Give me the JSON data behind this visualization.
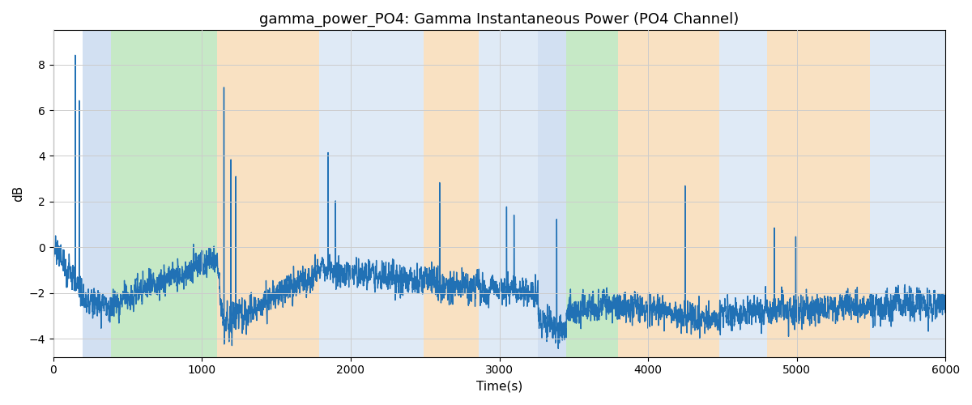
{
  "title": "gamma_power_PO4: Gamma Instantaneous Power (PO4 Channel)",
  "xlabel": "Time(s)",
  "ylabel": "dB",
  "xlim": [
    0,
    6000
  ],
  "ylim": [
    -4.8,
    9.5
  ],
  "yticks": [
    -4,
    -2,
    0,
    2,
    4,
    6,
    8
  ],
  "xticks": [
    0,
    1000,
    2000,
    3000,
    4000,
    5000,
    6000
  ],
  "line_color": "#2171b5",
  "line_width": 1.0,
  "background_color": "#ffffff",
  "grid_color": "#cccccc",
  "title_fontsize": 13,
  "bands": [
    {
      "xmin": 200,
      "xmax": 390,
      "color": "#aec8e8",
      "alpha": 0.55
    },
    {
      "xmin": 390,
      "xmax": 1100,
      "color": "#98d898",
      "alpha": 0.55
    },
    {
      "xmin": 1100,
      "xmax": 1790,
      "color": "#f5c990",
      "alpha": 0.55
    },
    {
      "xmin": 1790,
      "xmax": 2490,
      "color": "#c6d9ef",
      "alpha": 0.55
    },
    {
      "xmin": 2490,
      "xmax": 2860,
      "color": "#f5c990",
      "alpha": 0.55
    },
    {
      "xmin": 2860,
      "xmax": 3260,
      "color": "#c6d9ef",
      "alpha": 0.55
    },
    {
      "xmin": 3260,
      "xmax": 3450,
      "color": "#aec8e8",
      "alpha": 0.55
    },
    {
      "xmin": 3450,
      "xmax": 3800,
      "color": "#98d898",
      "alpha": 0.55
    },
    {
      "xmin": 3800,
      "xmax": 4480,
      "color": "#f5c990",
      "alpha": 0.55
    },
    {
      "xmin": 4480,
      "xmax": 4800,
      "color": "#c6d9ef",
      "alpha": 0.55
    },
    {
      "xmin": 4800,
      "xmax": 5490,
      "color": "#f5c990",
      "alpha": 0.55
    },
    {
      "xmin": 5490,
      "xmax": 6000,
      "color": "#c6d9ef",
      "alpha": 0.55
    }
  ],
  "seed": 1234
}
